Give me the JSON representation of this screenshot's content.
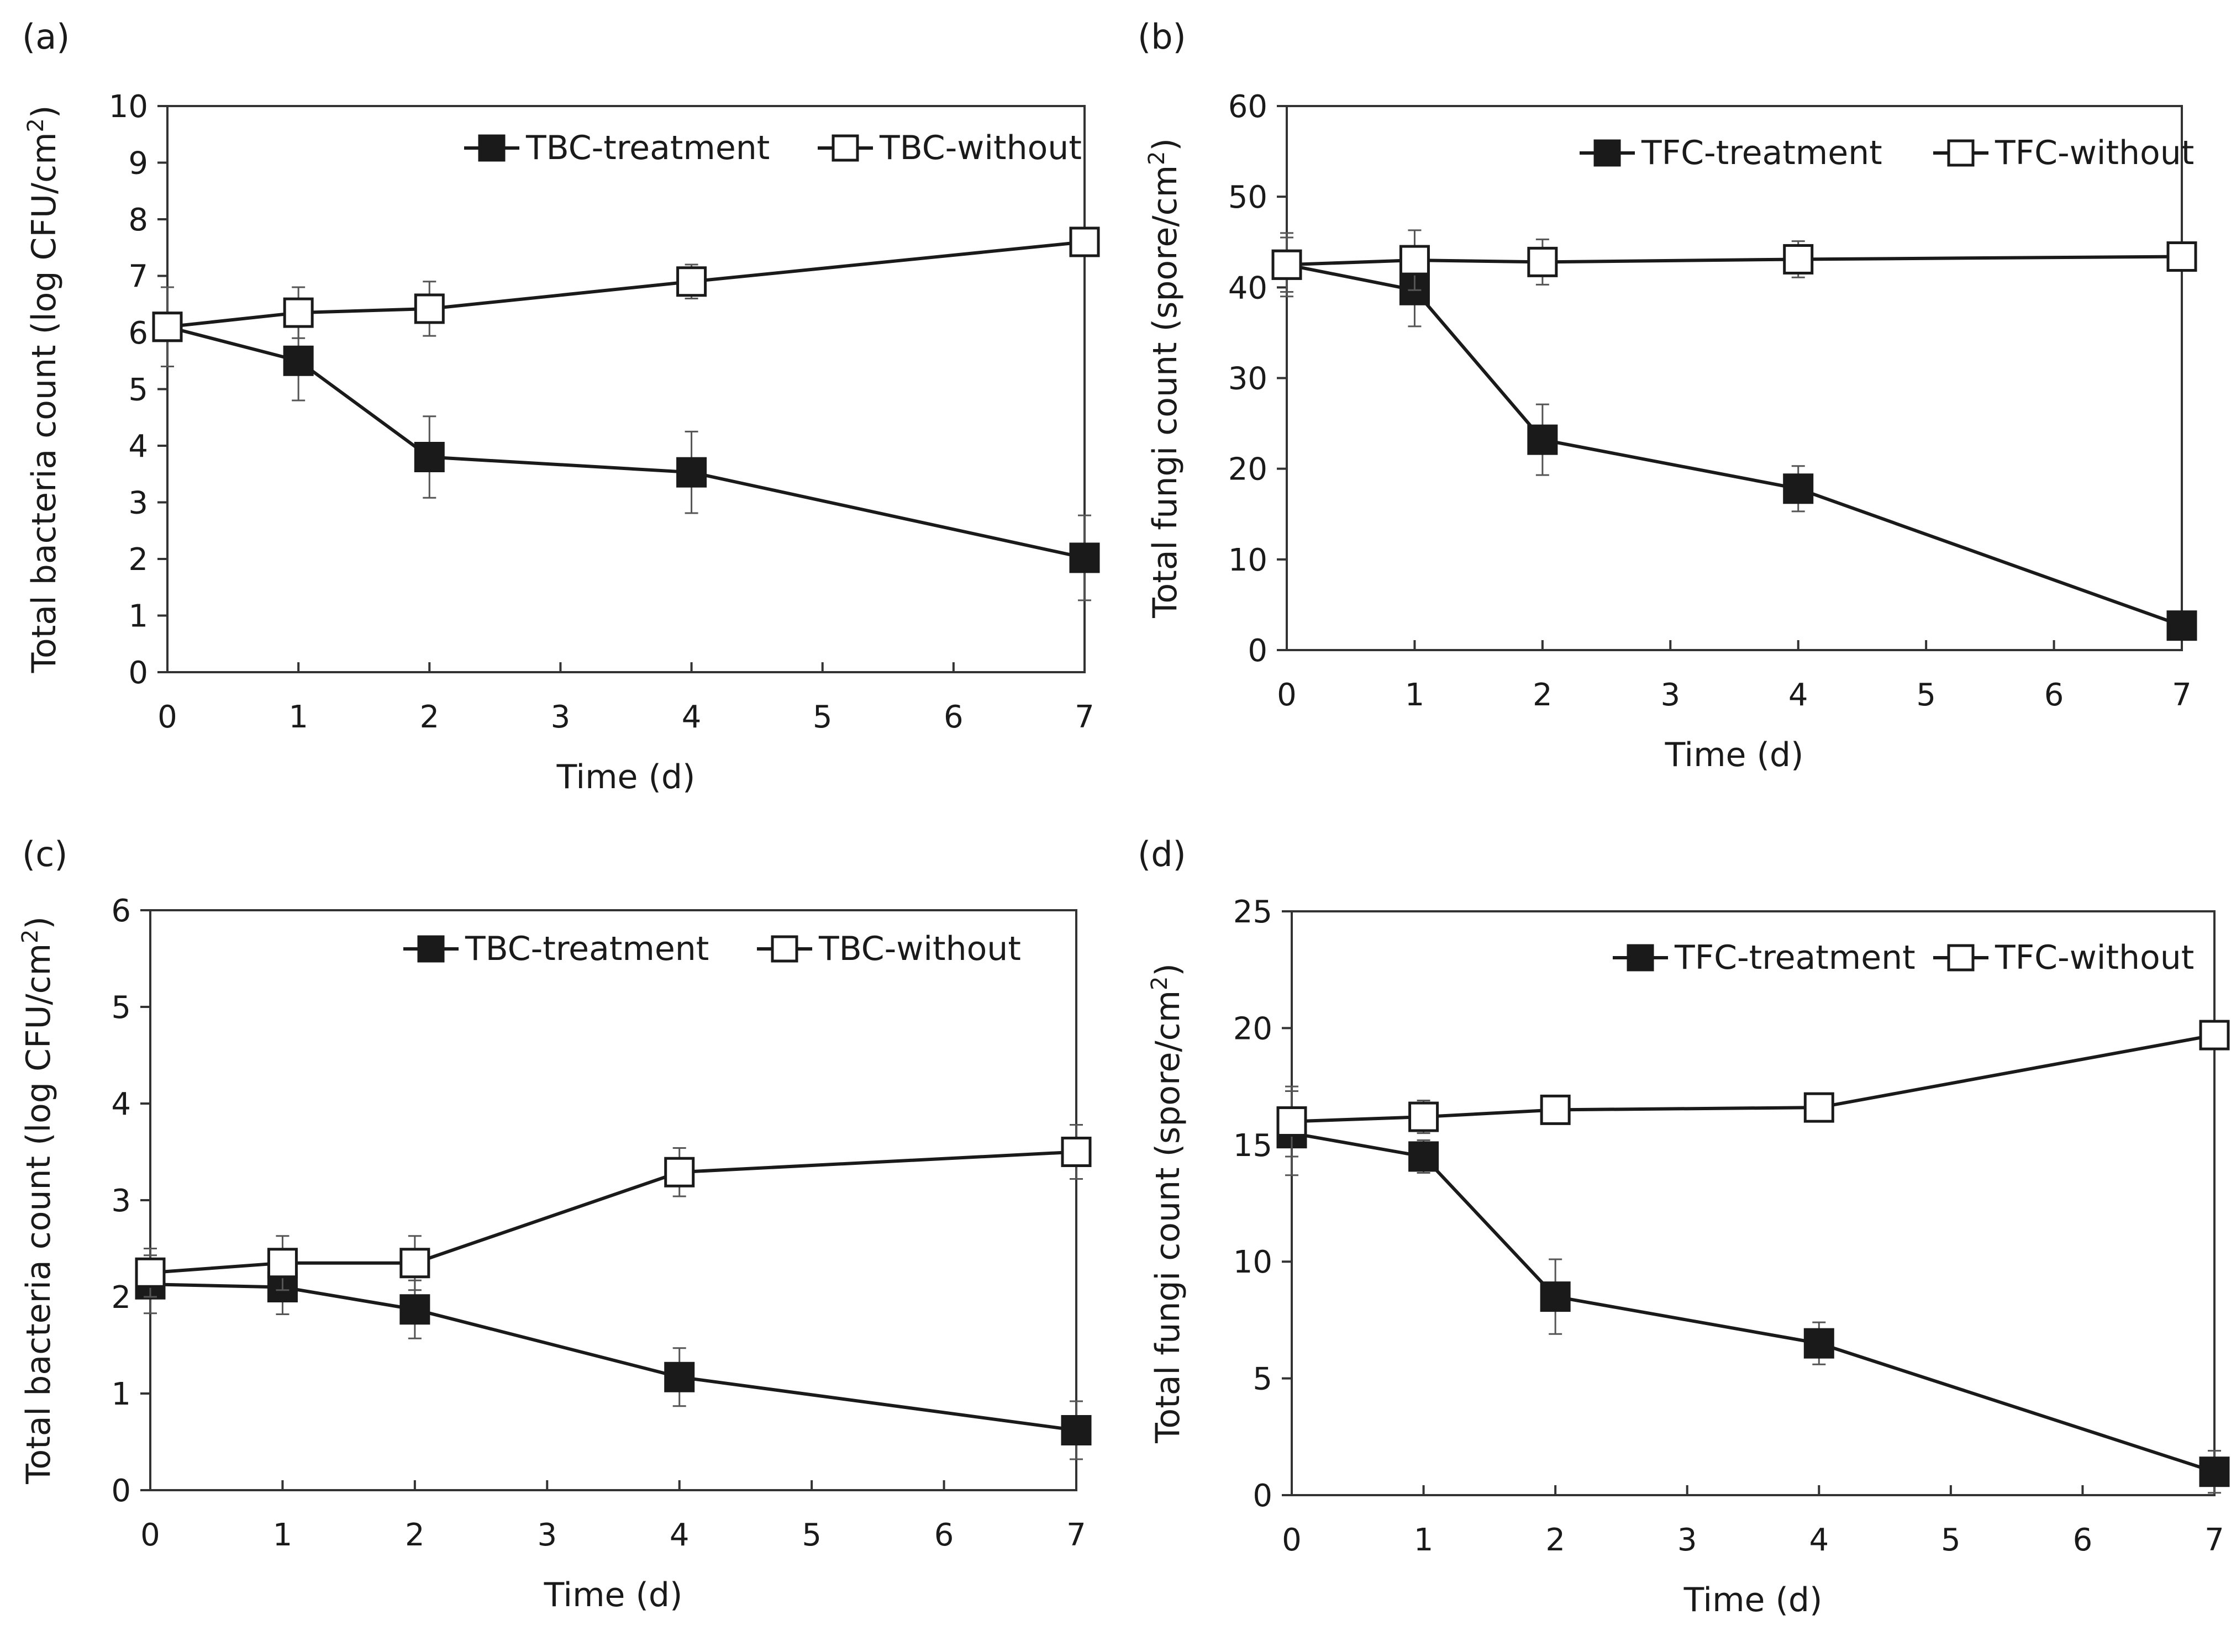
{
  "figure": {
    "background": "#ffffff",
    "line_color": "#1a1a1a",
    "axis_color": "#333333"
  },
  "chart_data": [
    {
      "id": "a",
      "panel_label": "(a)",
      "type": "line",
      "xlabel": "Time  (d)",
      "ylabel": "Total  bacteria count (log CFU/cm",
      "ylabel_sup": "2",
      "ylabel_end": ")",
      "xlim": [
        0,
        7
      ],
      "ylim": [
        0,
        10
      ],
      "xticks": [
        0,
        1,
        2,
        3,
        4,
        5,
        6,
        7
      ],
      "yticks": [
        0,
        1,
        2,
        3,
        4,
        5,
        6,
        7,
        8,
        9,
        10
      ],
      "x": [
        0,
        1,
        2,
        4,
        7
      ],
      "legend_position": "top-right",
      "series": [
        {
          "name": "TBC-treatment",
          "marker": "filled-square",
          "values": [
            6.1,
            5.5,
            3.8,
            3.53,
            2.02
          ],
          "errors": [
            0.2,
            0.7,
            0.72,
            0.72,
            0.75
          ]
        },
        {
          "name": "TBC-without",
          "marker": "open-square",
          "values": [
            6.1,
            6.35,
            6.42,
            6.9,
            7.6
          ],
          "errors": [
            0.7,
            0.45,
            0.48,
            0.3,
            0.1
          ]
        }
      ]
    },
    {
      "id": "b",
      "panel_label": "(b)",
      "type": "line",
      "xlabel": "Time  (d)",
      "ylabel": "Total fungi count (spore/cm",
      "ylabel_sup": "2",
      "ylabel_end": ")",
      "xlim": [
        0,
        7
      ],
      "ylim": [
        0,
        60
      ],
      "xticks": [
        0,
        1,
        2,
        3,
        4,
        5,
        6,
        7
      ],
      "yticks": [
        0,
        10,
        20,
        30,
        40,
        50,
        60
      ],
      "x": [
        0,
        1,
        2,
        4,
        7
      ],
      "legend_position": "top-right",
      "series": [
        {
          "name": "TFC-treatment",
          "marker": "filled-square",
          "values": [
            42.5,
            39.7,
            23.2,
            17.8,
            2.7
          ],
          "errors": [
            3.0,
            4.0,
            3.9,
            2.5,
            1.0
          ]
        },
        {
          "name": "TFC-without",
          "marker": "open-square",
          "values": [
            42.5,
            43.0,
            42.8,
            43.1,
            43.4
          ],
          "errors": [
            3.5,
            3.3,
            2.5,
            2.0,
            0.4
          ]
        }
      ]
    },
    {
      "id": "c",
      "panel_label": "(c)",
      "type": "line",
      "xlabel": "Time  (d)",
      "ylabel": "Total  bacteria count (log CFU/cm",
      "ylabel_sup": "2",
      "ylabel_end": ")",
      "xlim": [
        0,
        7
      ],
      "ylim": [
        0,
        6
      ],
      "xticks": [
        0,
        1,
        2,
        3,
        4,
        5,
        6,
        7
      ],
      "yticks": [
        0,
        1,
        2,
        3,
        4,
        5,
        6
      ],
      "x": [
        0,
        1,
        2,
        4,
        7
      ],
      "legend_position": "top-right",
      "series": [
        {
          "name": "TBC-treatment",
          "marker": "filled-square",
          "values": [
            2.13,
            2.1,
            1.87,
            1.17,
            0.62
          ],
          "errors": [
            0.3,
            0.28,
            0.3,
            0.3,
            0.3
          ]
        },
        {
          "name": "TBC-without",
          "marker": "open-square",
          "values": [
            2.25,
            2.35,
            2.35,
            3.29,
            3.5
          ],
          "errors": [
            0.25,
            0.28,
            0.28,
            0.25,
            0.28
          ]
        }
      ]
    },
    {
      "id": "d",
      "panel_label": "(d)",
      "type": "line",
      "xlabel": "Time  (d)",
      "ylabel": "Total fungi count (spore/cm",
      "ylabel_sup": "2",
      "ylabel_end": ")",
      "xlim": [
        0,
        7
      ],
      "ylim": [
        0,
        25
      ],
      "xticks": [
        0,
        1,
        2,
        3,
        4,
        5,
        6,
        7
      ],
      "yticks": [
        0,
        5,
        10,
        15,
        20,
        25
      ],
      "x": [
        0,
        1,
        2,
        4,
        7
      ],
      "legend_position": "top-right",
      "series": [
        {
          "name": "TFC-treatment",
          "marker": "filled-square",
          "values": [
            15.5,
            14.5,
            8.5,
            6.5,
            1.0
          ],
          "errors": [
            1.8,
            0.7,
            1.6,
            0.9,
            0.9
          ]
        },
        {
          "name": "TFC-without",
          "marker": "open-square",
          "values": [
            16.0,
            16.2,
            16.5,
            16.6,
            19.7
          ],
          "errors": [
            1.5,
            0.7,
            0.6,
            0.6,
            0.4
          ]
        }
      ]
    }
  ]
}
